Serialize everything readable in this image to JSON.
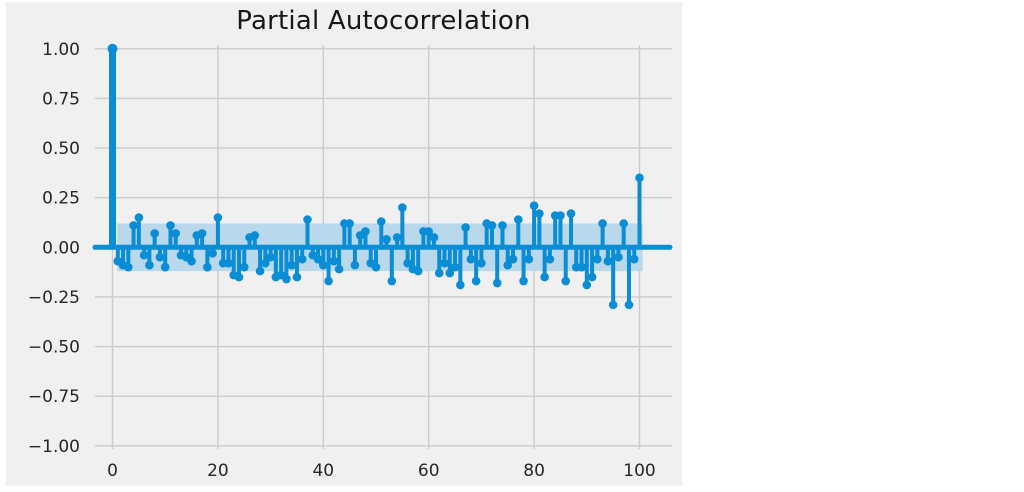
{
  "chart_data": {
    "type": "stem",
    "title": "Partial Autocorrelation",
    "xlabel": "",
    "ylabel": "",
    "x": [
      0,
      1,
      2,
      3,
      4,
      5,
      6,
      7,
      8,
      9,
      10,
      11,
      12,
      13,
      14,
      15,
      16,
      17,
      18,
      19,
      20,
      21,
      22,
      23,
      24,
      25,
      26,
      27,
      28,
      29,
      30,
      31,
      32,
      33,
      34,
      35,
      36,
      37,
      38,
      39,
      40,
      41,
      42,
      43,
      44,
      45,
      46,
      47,
      48,
      49,
      50,
      51,
      52,
      53,
      54,
      55,
      56,
      57,
      58,
      59,
      60,
      61,
      62,
      63,
      64,
      65,
      66,
      67,
      68,
      69,
      70,
      71,
      72,
      73,
      74,
      75,
      76,
      77,
      78,
      79,
      80,
      81,
      82,
      83,
      84,
      85,
      86,
      87,
      88,
      89,
      90,
      91,
      92,
      93,
      94,
      95,
      96,
      97,
      98,
      99,
      100
    ],
    "values": [
      1.0,
      -0.07,
      -0.09,
      -0.1,
      0.11,
      0.15,
      -0.04,
      -0.09,
      0.07,
      -0.05,
      -0.1,
      0.11,
      0.07,
      -0.04,
      -0.05,
      -0.07,
      0.06,
      0.07,
      -0.1,
      -0.03,
      0.15,
      -0.08,
      -0.08,
      -0.14,
      -0.15,
      -0.1,
      0.05,
      0.06,
      -0.12,
      -0.08,
      -0.05,
      -0.15,
      -0.14,
      -0.16,
      -0.09,
      -0.15,
      -0.06,
      0.14,
      -0.04,
      -0.06,
      -0.09,
      -0.17,
      -0.07,
      -0.11,
      0.12,
      0.12,
      -0.09,
      0.06,
      0.08,
      -0.08,
      -0.1,
      0.13,
      0.04,
      -0.17,
      0.05,
      0.2,
      -0.08,
      -0.11,
      -0.12,
      0.08,
      0.08,
      0.05,
      -0.13,
      -0.08,
      -0.13,
      -0.1,
      -0.19,
      0.1,
      -0.06,
      -0.17,
      -0.08,
      0.12,
      0.11,
      -0.18,
      0.11,
      -0.09,
      -0.06,
      0.14,
      -0.17,
      -0.06,
      0.21,
      0.17,
      -0.15,
      -0.06,
      0.16,
      0.16,
      -0.17,
      0.17,
      -0.1,
      -0.1,
      -0.19,
      -0.15,
      -0.06,
      0.12,
      -0.07,
      -0.29,
      -0.05,
      0.12,
      -0.29,
      -0.06,
      0.35
    ],
    "confidence_band": {
      "lower": -0.12,
      "upper": 0.12,
      "x_start": 0.9,
      "x_end": 100.6
    },
    "x_ticks": [
      0,
      20,
      40,
      60,
      80,
      100
    ],
    "x_tick_labels": [
      "0",
      "20",
      "40",
      "60",
      "80",
      "100"
    ],
    "y_ticks": [
      1.0,
      0.75,
      0.5,
      0.25,
      0.0,
      -0.25,
      -0.5,
      -0.75,
      -1.0
    ],
    "y_tick_labels": [
      "1.00",
      "0.75",
      "0.50",
      "0.25",
      "0.00",
      "−0.25",
      "−0.50",
      "−0.75",
      "−1.00"
    ],
    "xlim": [
      -3.3,
      106.5
    ],
    "ylim": [
      -1.02,
      1.02
    ],
    "grid": true,
    "legend_position": "none",
    "colors": {
      "stem": "#0A8DD4",
      "marker": "#0A8DD4",
      "zero_line": "#0A8DD4",
      "confidence_band_fill": "#B9D8EB",
      "panel_background": "#F0F0F0",
      "gridline": "#CBCBCB",
      "tick_text": "#262626",
      "title_text": "#171717"
    }
  }
}
